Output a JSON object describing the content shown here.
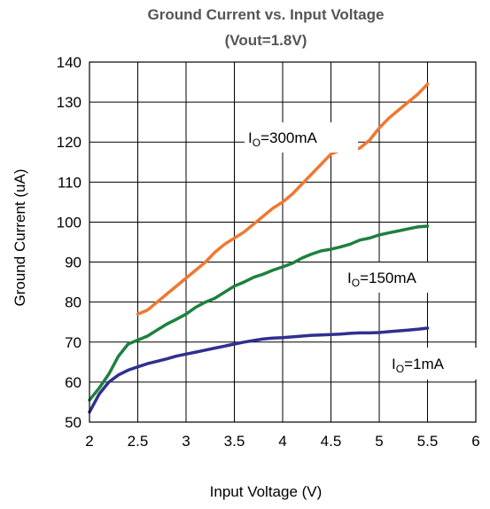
{
  "chart_data": {
    "type": "line",
    "title": "Ground Current  vs. Input Voltage",
    "subtitle": "(Vout=1.8V)",
    "xlabel": "Input Voltage (V)",
    "ylabel": "Ground Current (uA)",
    "xlim": [
      2,
      6
    ],
    "ylim": [
      50,
      140
    ],
    "xticks": [
      2,
      2.5,
      3,
      3.5,
      4,
      4.5,
      5,
      5.5,
      6
    ],
    "yticks": [
      50,
      60,
      70,
      80,
      90,
      100,
      110,
      120,
      130,
      140
    ],
    "xtick_labels": [
      "2",
      "2.5",
      "3",
      "3.5",
      "4",
      "4.5",
      "5",
      "5.5",
      "6"
    ],
    "ytick_labels": [
      "50",
      "60",
      "70",
      "80",
      "90",
      "100",
      "110",
      "120",
      "130",
      "140"
    ],
    "grid": true,
    "legend": "none",
    "series": [
      {
        "label_main": "I",
        "label_sub": "O",
        "label_rest": "=300mA",
        "color": "#f07830",
        "points": [
          [
            2.5,
            77
          ],
          [
            2.6,
            78
          ],
          [
            2.7,
            80
          ],
          [
            2.8,
            82
          ],
          [
            2.9,
            84
          ],
          [
            3.0,
            86
          ],
          [
            3.1,
            88
          ],
          [
            3.2,
            90
          ],
          [
            3.3,
            92.5
          ],
          [
            3.4,
            94.5
          ],
          [
            3.5,
            96
          ],
          [
            3.6,
            97.5
          ],
          [
            3.7,
            99.5
          ],
          [
            3.8,
            101.5
          ],
          [
            3.9,
            103.5
          ],
          [
            4.0,
            105
          ],
          [
            4.1,
            107
          ],
          [
            4.2,
            109.5
          ],
          [
            4.3,
            112
          ],
          [
            4.4,
            114.5
          ],
          [
            4.5,
            117
          ],
          [
            4.6,
            118
          ],
          [
            4.7,
            118
          ],
          [
            4.8,
            118.5
          ],
          [
            4.9,
            120.5
          ],
          [
            5.0,
            123.5
          ],
          [
            5.1,
            126
          ],
          [
            5.2,
            128
          ],
          [
            5.3,
            130
          ],
          [
            5.4,
            132
          ],
          [
            5.5,
            134.5
          ]
        ]
      },
      {
        "label_main": "I",
        "label_sub": "O",
        "label_rest": "=150mA",
        "color": "#1e8040",
        "points": [
          [
            2.0,
            55.5
          ],
          [
            2.1,
            58.5
          ],
          [
            2.2,
            62
          ],
          [
            2.3,
            66.5
          ],
          [
            2.4,
            69.5
          ],
          [
            2.5,
            70.5
          ],
          [
            2.6,
            71.5
          ],
          [
            2.7,
            73
          ],
          [
            2.8,
            74.5
          ],
          [
            2.9,
            75.7
          ],
          [
            3.0,
            77
          ],
          [
            3.1,
            78.7
          ],
          [
            3.2,
            80
          ],
          [
            3.3,
            81
          ],
          [
            3.4,
            82.5
          ],
          [
            3.5,
            84
          ],
          [
            3.6,
            85
          ],
          [
            3.7,
            86.2
          ],
          [
            3.8,
            87
          ],
          [
            3.9,
            88
          ],
          [
            4.0,
            88.8
          ],
          [
            4.1,
            89.7
          ],
          [
            4.2,
            91
          ],
          [
            4.3,
            92
          ],
          [
            4.4,
            92.8
          ],
          [
            4.5,
            93.2
          ],
          [
            4.6,
            93.8
          ],
          [
            4.7,
            94.5
          ],
          [
            4.8,
            95.5
          ],
          [
            4.9,
            96
          ],
          [
            5.0,
            96.8
          ],
          [
            5.1,
            97.3
          ],
          [
            5.2,
            97.8
          ],
          [
            5.3,
            98.3
          ],
          [
            5.4,
            98.8
          ],
          [
            5.5,
            99
          ]
        ]
      },
      {
        "label_main": "I",
        "label_sub": "O",
        "label_rest": "=1mA",
        "color": "#303090",
        "points": [
          [
            2.0,
            52.5
          ],
          [
            2.1,
            57
          ],
          [
            2.2,
            60
          ],
          [
            2.3,
            61.8
          ],
          [
            2.4,
            63
          ],
          [
            2.5,
            63.8
          ],
          [
            2.6,
            64.6
          ],
          [
            2.7,
            65.2
          ],
          [
            2.8,
            65.8
          ],
          [
            2.9,
            66.5
          ],
          [
            3.0,
            67
          ],
          [
            3.1,
            67.5
          ],
          [
            3.2,
            68
          ],
          [
            3.3,
            68.5
          ],
          [
            3.4,
            69
          ],
          [
            3.5,
            69.5
          ],
          [
            3.6,
            70
          ],
          [
            3.7,
            70.4
          ],
          [
            3.8,
            70.8
          ],
          [
            3.9,
            71
          ],
          [
            4.0,
            71.1
          ],
          [
            4.1,
            71.3
          ],
          [
            4.2,
            71.5
          ],
          [
            4.3,
            71.7
          ],
          [
            4.4,
            71.8
          ],
          [
            4.5,
            71.9
          ],
          [
            4.6,
            72
          ],
          [
            4.7,
            72.2
          ],
          [
            4.8,
            72.3
          ],
          [
            4.9,
            72.3
          ],
          [
            5.0,
            72.4
          ],
          [
            5.1,
            72.6
          ],
          [
            5.2,
            72.8
          ],
          [
            5.3,
            73
          ],
          [
            5.4,
            73.2
          ],
          [
            5.5,
            73.5
          ]
        ]
      }
    ]
  }
}
